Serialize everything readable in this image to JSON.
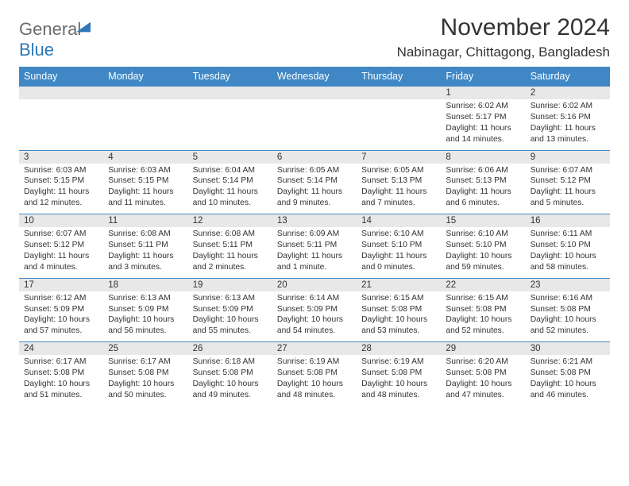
{
  "logo": {
    "text1": "General",
    "text2": "Blue"
  },
  "title": "November 2024",
  "location": "Nabinagar, Chittagong, Bangladesh",
  "colors": {
    "header_bg": "#3f88c5",
    "header_text": "#ffffff",
    "daynum_bg": "#e8e8e8",
    "border": "#3f88c5",
    "text": "#333333",
    "logo_grey": "#6b6b6b",
    "logo_blue": "#2f78b7",
    "page_bg": "#ffffff"
  },
  "typography": {
    "title_fontsize": 30,
    "location_fontsize": 17,
    "dow_fontsize": 12.5,
    "daynum_fontsize": 11.5,
    "cell_fontsize": 10.3
  },
  "dow": [
    "Sunday",
    "Monday",
    "Tuesday",
    "Wednesday",
    "Thursday",
    "Friday",
    "Saturday"
  ],
  "weeks": [
    [
      null,
      null,
      null,
      null,
      null,
      {
        "n": "1",
        "sr": "Sunrise: 6:02 AM",
        "ss": "Sunset: 5:17 PM",
        "d1": "Daylight: 11 hours",
        "d2": "and 14 minutes."
      },
      {
        "n": "2",
        "sr": "Sunrise: 6:02 AM",
        "ss": "Sunset: 5:16 PM",
        "d1": "Daylight: 11 hours",
        "d2": "and 13 minutes."
      }
    ],
    [
      {
        "n": "3",
        "sr": "Sunrise: 6:03 AM",
        "ss": "Sunset: 5:15 PM",
        "d1": "Daylight: 11 hours",
        "d2": "and 12 minutes."
      },
      {
        "n": "4",
        "sr": "Sunrise: 6:03 AM",
        "ss": "Sunset: 5:15 PM",
        "d1": "Daylight: 11 hours",
        "d2": "and 11 minutes."
      },
      {
        "n": "5",
        "sr": "Sunrise: 6:04 AM",
        "ss": "Sunset: 5:14 PM",
        "d1": "Daylight: 11 hours",
        "d2": "and 10 minutes."
      },
      {
        "n": "6",
        "sr": "Sunrise: 6:05 AM",
        "ss": "Sunset: 5:14 PM",
        "d1": "Daylight: 11 hours",
        "d2": "and 9 minutes."
      },
      {
        "n": "7",
        "sr": "Sunrise: 6:05 AM",
        "ss": "Sunset: 5:13 PM",
        "d1": "Daylight: 11 hours",
        "d2": "and 7 minutes."
      },
      {
        "n": "8",
        "sr": "Sunrise: 6:06 AM",
        "ss": "Sunset: 5:13 PM",
        "d1": "Daylight: 11 hours",
        "d2": "and 6 minutes."
      },
      {
        "n": "9",
        "sr": "Sunrise: 6:07 AM",
        "ss": "Sunset: 5:12 PM",
        "d1": "Daylight: 11 hours",
        "d2": "and 5 minutes."
      }
    ],
    [
      {
        "n": "10",
        "sr": "Sunrise: 6:07 AM",
        "ss": "Sunset: 5:12 PM",
        "d1": "Daylight: 11 hours",
        "d2": "and 4 minutes."
      },
      {
        "n": "11",
        "sr": "Sunrise: 6:08 AM",
        "ss": "Sunset: 5:11 PM",
        "d1": "Daylight: 11 hours",
        "d2": "and 3 minutes."
      },
      {
        "n": "12",
        "sr": "Sunrise: 6:08 AM",
        "ss": "Sunset: 5:11 PM",
        "d1": "Daylight: 11 hours",
        "d2": "and 2 minutes."
      },
      {
        "n": "13",
        "sr": "Sunrise: 6:09 AM",
        "ss": "Sunset: 5:11 PM",
        "d1": "Daylight: 11 hours",
        "d2": "and 1 minute."
      },
      {
        "n": "14",
        "sr": "Sunrise: 6:10 AM",
        "ss": "Sunset: 5:10 PM",
        "d1": "Daylight: 11 hours",
        "d2": "and 0 minutes."
      },
      {
        "n": "15",
        "sr": "Sunrise: 6:10 AM",
        "ss": "Sunset: 5:10 PM",
        "d1": "Daylight: 10 hours",
        "d2": "and 59 minutes."
      },
      {
        "n": "16",
        "sr": "Sunrise: 6:11 AM",
        "ss": "Sunset: 5:10 PM",
        "d1": "Daylight: 10 hours",
        "d2": "and 58 minutes."
      }
    ],
    [
      {
        "n": "17",
        "sr": "Sunrise: 6:12 AM",
        "ss": "Sunset: 5:09 PM",
        "d1": "Daylight: 10 hours",
        "d2": "and 57 minutes."
      },
      {
        "n": "18",
        "sr": "Sunrise: 6:13 AM",
        "ss": "Sunset: 5:09 PM",
        "d1": "Daylight: 10 hours",
        "d2": "and 56 minutes."
      },
      {
        "n": "19",
        "sr": "Sunrise: 6:13 AM",
        "ss": "Sunset: 5:09 PM",
        "d1": "Daylight: 10 hours",
        "d2": "and 55 minutes."
      },
      {
        "n": "20",
        "sr": "Sunrise: 6:14 AM",
        "ss": "Sunset: 5:09 PM",
        "d1": "Daylight: 10 hours",
        "d2": "and 54 minutes."
      },
      {
        "n": "21",
        "sr": "Sunrise: 6:15 AM",
        "ss": "Sunset: 5:08 PM",
        "d1": "Daylight: 10 hours",
        "d2": "and 53 minutes."
      },
      {
        "n": "22",
        "sr": "Sunrise: 6:15 AM",
        "ss": "Sunset: 5:08 PM",
        "d1": "Daylight: 10 hours",
        "d2": "and 52 minutes."
      },
      {
        "n": "23",
        "sr": "Sunrise: 6:16 AM",
        "ss": "Sunset: 5:08 PM",
        "d1": "Daylight: 10 hours",
        "d2": "and 52 minutes."
      }
    ],
    [
      {
        "n": "24",
        "sr": "Sunrise: 6:17 AM",
        "ss": "Sunset: 5:08 PM",
        "d1": "Daylight: 10 hours",
        "d2": "and 51 minutes."
      },
      {
        "n": "25",
        "sr": "Sunrise: 6:17 AM",
        "ss": "Sunset: 5:08 PM",
        "d1": "Daylight: 10 hours",
        "d2": "and 50 minutes."
      },
      {
        "n": "26",
        "sr": "Sunrise: 6:18 AM",
        "ss": "Sunset: 5:08 PM",
        "d1": "Daylight: 10 hours",
        "d2": "and 49 minutes."
      },
      {
        "n": "27",
        "sr": "Sunrise: 6:19 AM",
        "ss": "Sunset: 5:08 PM",
        "d1": "Daylight: 10 hours",
        "d2": "and 48 minutes."
      },
      {
        "n": "28",
        "sr": "Sunrise: 6:19 AM",
        "ss": "Sunset: 5:08 PM",
        "d1": "Daylight: 10 hours",
        "d2": "and 48 minutes."
      },
      {
        "n": "29",
        "sr": "Sunrise: 6:20 AM",
        "ss": "Sunset: 5:08 PM",
        "d1": "Daylight: 10 hours",
        "d2": "and 47 minutes."
      },
      {
        "n": "30",
        "sr": "Sunrise: 6:21 AM",
        "ss": "Sunset: 5:08 PM",
        "d1": "Daylight: 10 hours",
        "d2": "and 46 minutes."
      }
    ]
  ]
}
